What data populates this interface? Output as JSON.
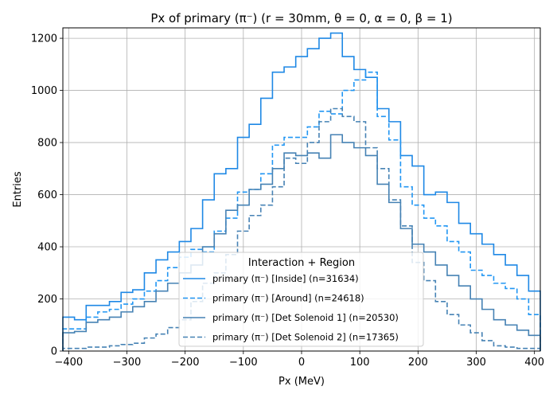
{
  "chart_data": {
    "type": "histogram-step",
    "title": "Px of primary (π⁻) (r = 30mm, θ = 0, α = 0, β = 1)",
    "xlabel": "Px (MeV)",
    "ylabel": "Entries",
    "xlim": [
      -410,
      410
    ],
    "ylim": [
      0,
      1240
    ],
    "grid": true,
    "x_ticks": [
      -400,
      -300,
      -200,
      -100,
      0,
      100,
      200,
      300,
      400
    ],
    "y_ticks": [
      0,
      200,
      400,
      600,
      800,
      1000,
      1200
    ],
    "x_tick_labels": [
      "−400",
      "−300",
      "−200",
      "−100",
      "0",
      "100",
      "200",
      "300",
      "400"
    ],
    "y_tick_labels": [
      "0",
      "200",
      "400",
      "600",
      "800",
      "1000",
      "1200"
    ],
    "bin_edges": [
      -410,
      -390,
      -370,
      -350,
      -330,
      -310,
      -290,
      -270,
      -250,
      -230,
      -210,
      -190,
      -170,
      -150,
      -130,
      -110,
      -90,
      -70,
      -50,
      -30,
      -10,
      10,
      30,
      50,
      70,
      90,
      110,
      130,
      150,
      170,
      190,
      210,
      230,
      250,
      270,
      290,
      310,
      330,
      350,
      370,
      390,
      410
    ],
    "legend": {
      "title": "Interaction + Region",
      "placement": "lower-center"
    },
    "series": [
      {
        "name": "primary (π⁻) [Inside] (n=31634)",
        "color": "#1e88e5",
        "dash": "solid",
        "values": [
          130,
          120,
          175,
          175,
          190,
          225,
          235,
          300,
          350,
          380,
          420,
          470,
          580,
          680,
          700,
          820,
          870,
          970,
          1070,
          1090,
          1130,
          1160,
          1200,
          1220,
          1130,
          1080,
          1050,
          930,
          880,
          750,
          710,
          600,
          610,
          570,
          490,
          450,
          410,
          370,
          330,
          290,
          230
        ]
      },
      {
        "name": "primary (π⁻) [Around] (n=24618)",
        "color": "#2196f3",
        "dash": "dashed",
        "values": [
          85,
          85,
          130,
          150,
          160,
          180,
          200,
          230,
          270,
          320,
          360,
          390,
          380,
          460,
          510,
          610,
          620,
          680,
          790,
          820,
          820,
          860,
          920,
          910,
          1000,
          1040,
          1070,
          900,
          810,
          630,
          560,
          510,
          480,
          420,
          380,
          310,
          290,
          260,
          240,
          200,
          140
        ]
      },
      {
        "name": "primary (π⁻) [Det Solenoid 1] (n=20530)",
        "color": "#4682b4",
        "dash": "solid",
        "values": [
          70,
          75,
          110,
          120,
          130,
          150,
          170,
          190,
          230,
          260,
          300,
          330,
          400,
          450,
          540,
          560,
          620,
          640,
          700,
          760,
          750,
          760,
          740,
          830,
          800,
          780,
          750,
          640,
          570,
          470,
          410,
          380,
          330,
          290,
          250,
          200,
          160,
          120,
          100,
          80,
          60
        ]
      },
      {
        "name": "primary (π⁻) [Det Solenoid 2] (n=17365)",
        "color": "#4682b4",
        "dash": "dashed",
        "values": [
          10,
          10,
          15,
          15,
          20,
          25,
          30,
          50,
          65,
          90,
          120,
          190,
          260,
          300,
          370,
          460,
          520,
          560,
          630,
          740,
          720,
          800,
          880,
          930,
          900,
          880,
          780,
          700,
          580,
          480,
          340,
          270,
          190,
          140,
          100,
          70,
          40,
          20,
          15,
          10,
          10
        ]
      }
    ]
  }
}
